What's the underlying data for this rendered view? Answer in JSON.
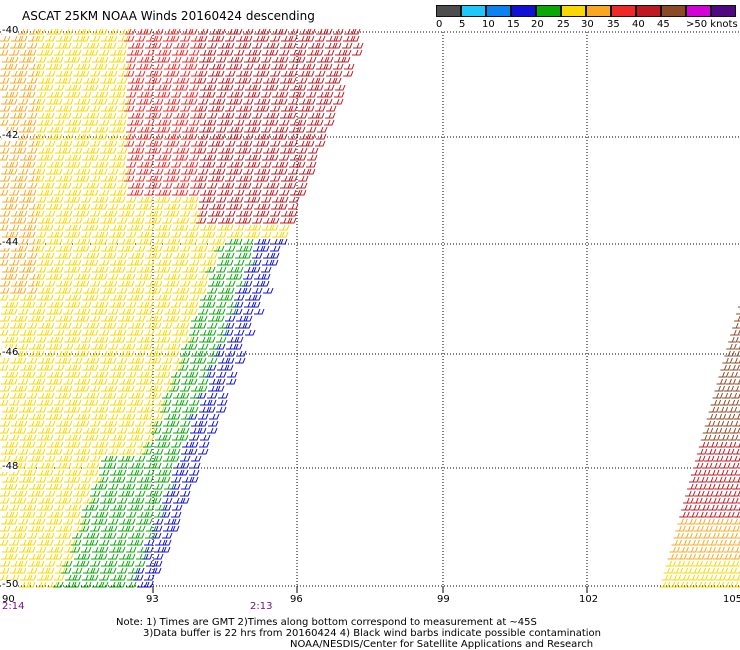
{
  "title": "ASCAT 25KM NOAA Winds 20160424 descending",
  "legend": {
    "colors": [
      "#4d4d4d",
      "#1ec8f8",
      "#0a82f0",
      "#1010d8",
      "#08a808",
      "#f8d800",
      "#f8a820",
      "#f02828",
      "#c01820",
      "#8a4a26",
      "#d400d8",
      "#500880"
    ],
    "labels": [
      "0",
      "5",
      "10",
      "15",
      "20",
      "25",
      "30",
      "35",
      "40",
      "45",
      ">50 knots"
    ]
  },
  "map": {
    "lat_labels": [
      "-40",
      "-42",
      "-44",
      "-46",
      "-48",
      "-50"
    ],
    "lon_labels": [
      "90",
      "93",
      "96",
      "99",
      "102",
      "105"
    ],
    "times": [
      "2:14",
      "2:13"
    ]
  },
  "notes": [
    "Note: 1) Times are GMT 2)Times along bottom correspond to measurement at ~45S",
    "3)Data buffer is 22 hrs from 20160424 4) Black wind barbs indicate possible contamination",
    "NOAA/NESDIS/Center for Satellite Applications and Research"
  ]
}
